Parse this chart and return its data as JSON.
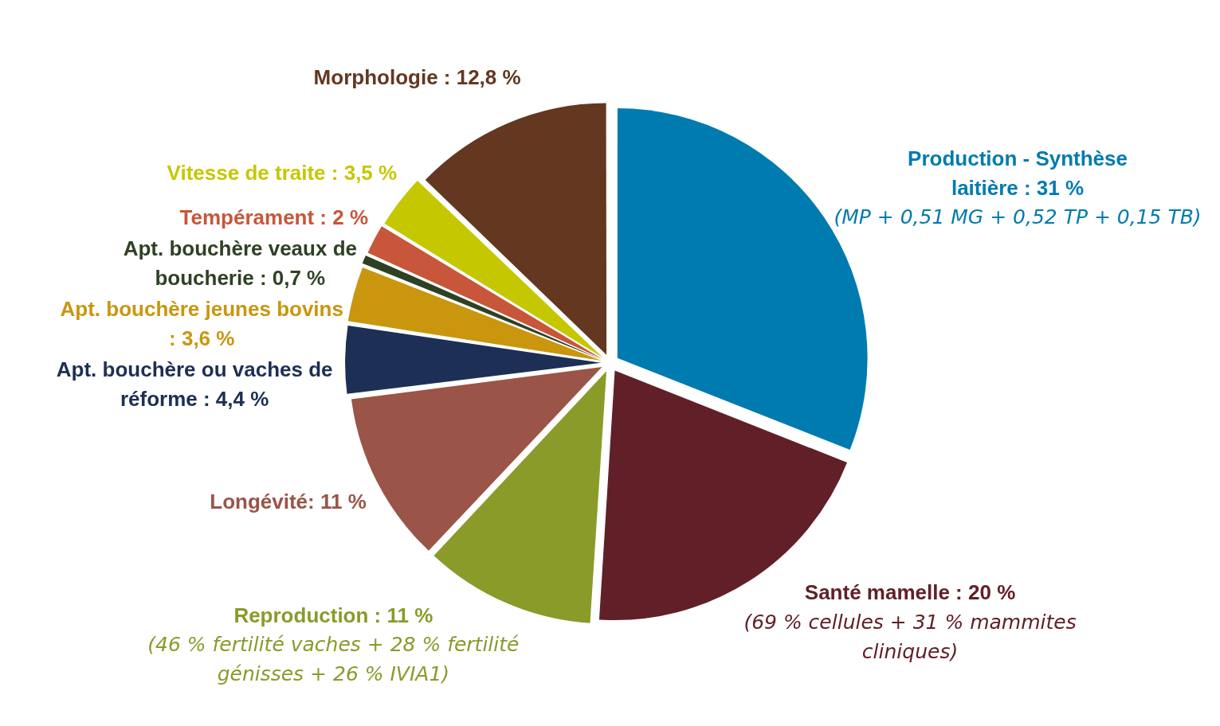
{
  "chart_data": {
    "type": "pie",
    "categories": [
      "Production - Synthèse laitière : 31 %",
      "Santé mamelle : 20 %",
      "Reproduction : 11 %",
      "Longévité: 11 %",
      "Apt. bouchère ou vaches de réforme : 4,4 %",
      "Apt. bouchère jeunes bovins : 3,6 %",
      "Apt. bouchère veaux de boucherie : 0,7 %",
      "Tempérament : 2 %",
      "Vitesse de traite : 3,5 %",
      "Morphologie : 12,8 %"
    ],
    "values": [
      31,
      20,
      11,
      11,
      4.4,
      3.6,
      0.7,
      2,
      3.5,
      12.8
    ],
    "colors": [
      "#007bb0",
      "#612028",
      "#8a9b2a",
      "#9b5448",
      "#1d2f55",
      "#c9960e",
      "#2f4125",
      "#c8563a",
      "#c5c800",
      "#633720"
    ],
    "annotations": [
      {
        "text": "(MP + 0,51 MG + 0,52 TP + 0,15 TB)",
        "x": "Production - Synthèse laitière : 31 %"
      },
      {
        "text": "(69 % cellules + 31 % mammites cliniques)",
        "x": "Santé mamelle : 20 %"
      },
      {
        "text": "(46 % fertilité vaches + 28 % fertilité génisses + 26 % IVIA1)",
        "x": "Reproduction : 11 %"
      }
    ],
    "legend": false
  }
}
